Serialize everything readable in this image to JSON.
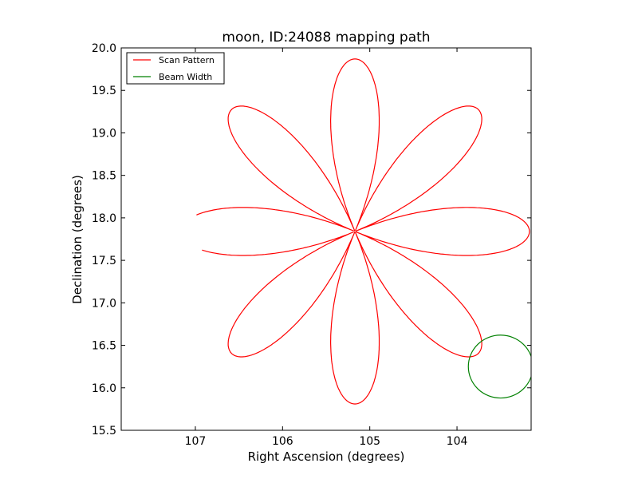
{
  "chart_data": {
    "type": "line",
    "title": "moon, ID:24088 mapping path",
    "xlabel": "Right Ascension (degrees)",
    "ylabel": "Declination (degrees)",
    "xlim": [
      107.85,
      103.15
    ],
    "ylim": [
      15.5,
      20.0
    ],
    "x_inverted": true,
    "xticks": [
      107,
      106,
      105,
      104
    ],
    "yticks": [
      15.5,
      16.0,
      16.5,
      17.0,
      17.5,
      18.0,
      18.5,
      19.0,
      19.5,
      20.0
    ],
    "xtick_labels": [
      "107",
      "106",
      "105",
      "104"
    ],
    "ytick_labels": [
      "15.5",
      "16.0",
      "16.5",
      "17.0",
      "17.5",
      "18.0",
      "18.5",
      "19.0",
      "19.5",
      "20.0"
    ],
    "grid": false,
    "legend_position": "top-left",
    "center": {
      "ra": 105.17,
      "dec": 17.84
    },
    "series": [
      {
        "name": "Scan Pattern",
        "color": "#ff0000",
        "kind": "rose",
        "petals": 8,
        "start_angle_deg": 187,
        "end_angle_deg": 174,
        "radius_x_deg": 2.0,
        "radius_y_deg": 2.03
      },
      {
        "name": "Beam Width",
        "color": "#008000",
        "kind": "circle",
        "center": {
          "ra": 103.5,
          "dec": 16.25
        },
        "radius_deg": 0.37
      }
    ]
  }
}
